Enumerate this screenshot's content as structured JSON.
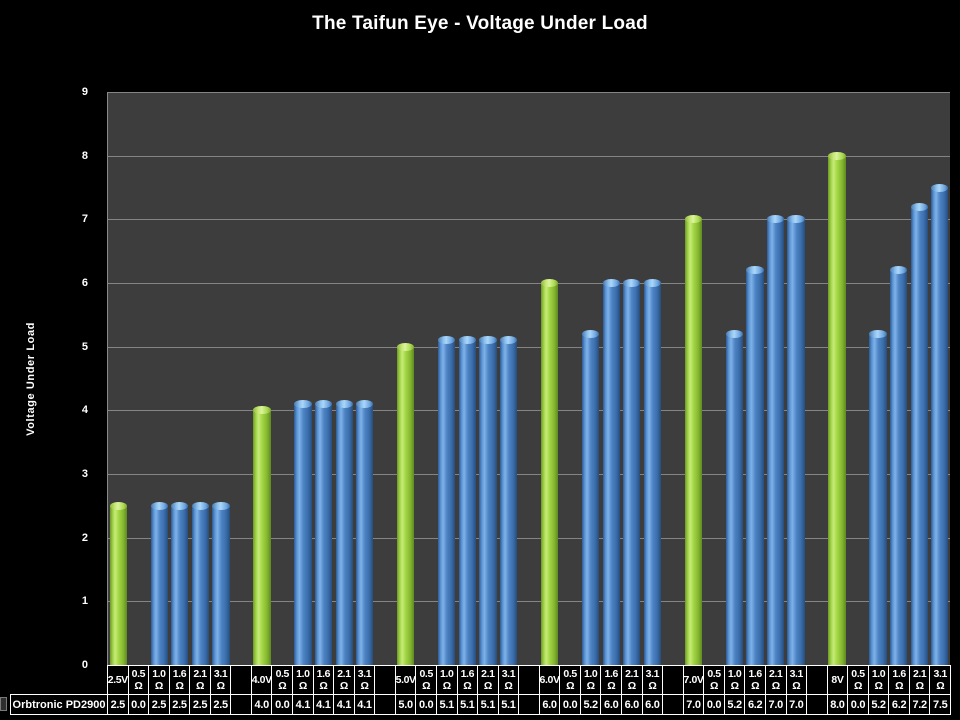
{
  "title": "The Taifun Eye - Voltage Under Load",
  "colors": {
    "background": "#000000",
    "plot_background": "#3d3d3d",
    "gridline": "#858585",
    "text": "#ffffff",
    "voltage_bar_green": "#9fd148",
    "load_bar_blue": "#4d84c4",
    "table_border": "#ffffff"
  },
  "chart_data": {
    "type": "bar",
    "title": "The Taifun Eye - Voltage Under Load",
    "xlabel": "",
    "ylabel": "Voltage Under Load",
    "ylim": [
      0,
      9
    ],
    "y_ticks": [
      0,
      1,
      2,
      3,
      4,
      5,
      6,
      7,
      8,
      9
    ],
    "grid": true,
    "legend_position": "data-table-left",
    "series_name": "Orbtronic PD2900",
    "column_roles": [
      "voltage",
      "load",
      "load",
      "load",
      "load",
      "load"
    ],
    "groups": [
      {
        "group_label": "2.5V",
        "categories": [
          "2.5V",
          "0.5 Ω",
          "1.0 Ω",
          "1.6 Ω",
          "2.1 Ω",
          "3.1 Ω"
        ],
        "values": [
          2.5,
          0.0,
          2.5,
          2.5,
          2.5,
          2.5
        ]
      },
      {
        "group_label": "4.0V",
        "categories": [
          "4.0V",
          "0.5 Ω",
          "1.0 Ω",
          "1.6 Ω",
          "2.1 Ω",
          "3.1 Ω"
        ],
        "values": [
          4.0,
          0.0,
          4.1,
          4.1,
          4.1,
          4.1
        ]
      },
      {
        "group_label": "5.0V",
        "categories": [
          "5.0V",
          "0.5 Ω",
          "1.0 Ω",
          "1.6 Ω",
          "2.1 Ω",
          "3.1 Ω"
        ],
        "values": [
          5.0,
          0.0,
          5.1,
          5.1,
          5.1,
          5.1
        ]
      },
      {
        "group_label": "6.0V",
        "categories": [
          "6.0V",
          "0.5 Ω",
          "1.0 Ω",
          "1.6 Ω",
          "2.1 Ω",
          "3.1 Ω"
        ],
        "values": [
          6.0,
          0.0,
          5.2,
          6.0,
          6.0,
          6.0
        ]
      },
      {
        "group_label": "7.0V",
        "categories": [
          "7.0V",
          "0.5 Ω",
          "1.0 Ω",
          "1.6 Ω",
          "2.1 Ω",
          "3.1 Ω"
        ],
        "values": [
          7.0,
          0.0,
          5.2,
          6.2,
          7.0,
          7.0
        ]
      },
      {
        "group_label": "8V",
        "categories": [
          "8V",
          "0.5 Ω",
          "1.0 Ω",
          "1.6 Ω",
          "2.1 Ω",
          "3.1 Ω"
        ],
        "values": [
          8.0,
          0.0,
          5.2,
          6.2,
          7.2,
          7.5
        ]
      }
    ]
  }
}
